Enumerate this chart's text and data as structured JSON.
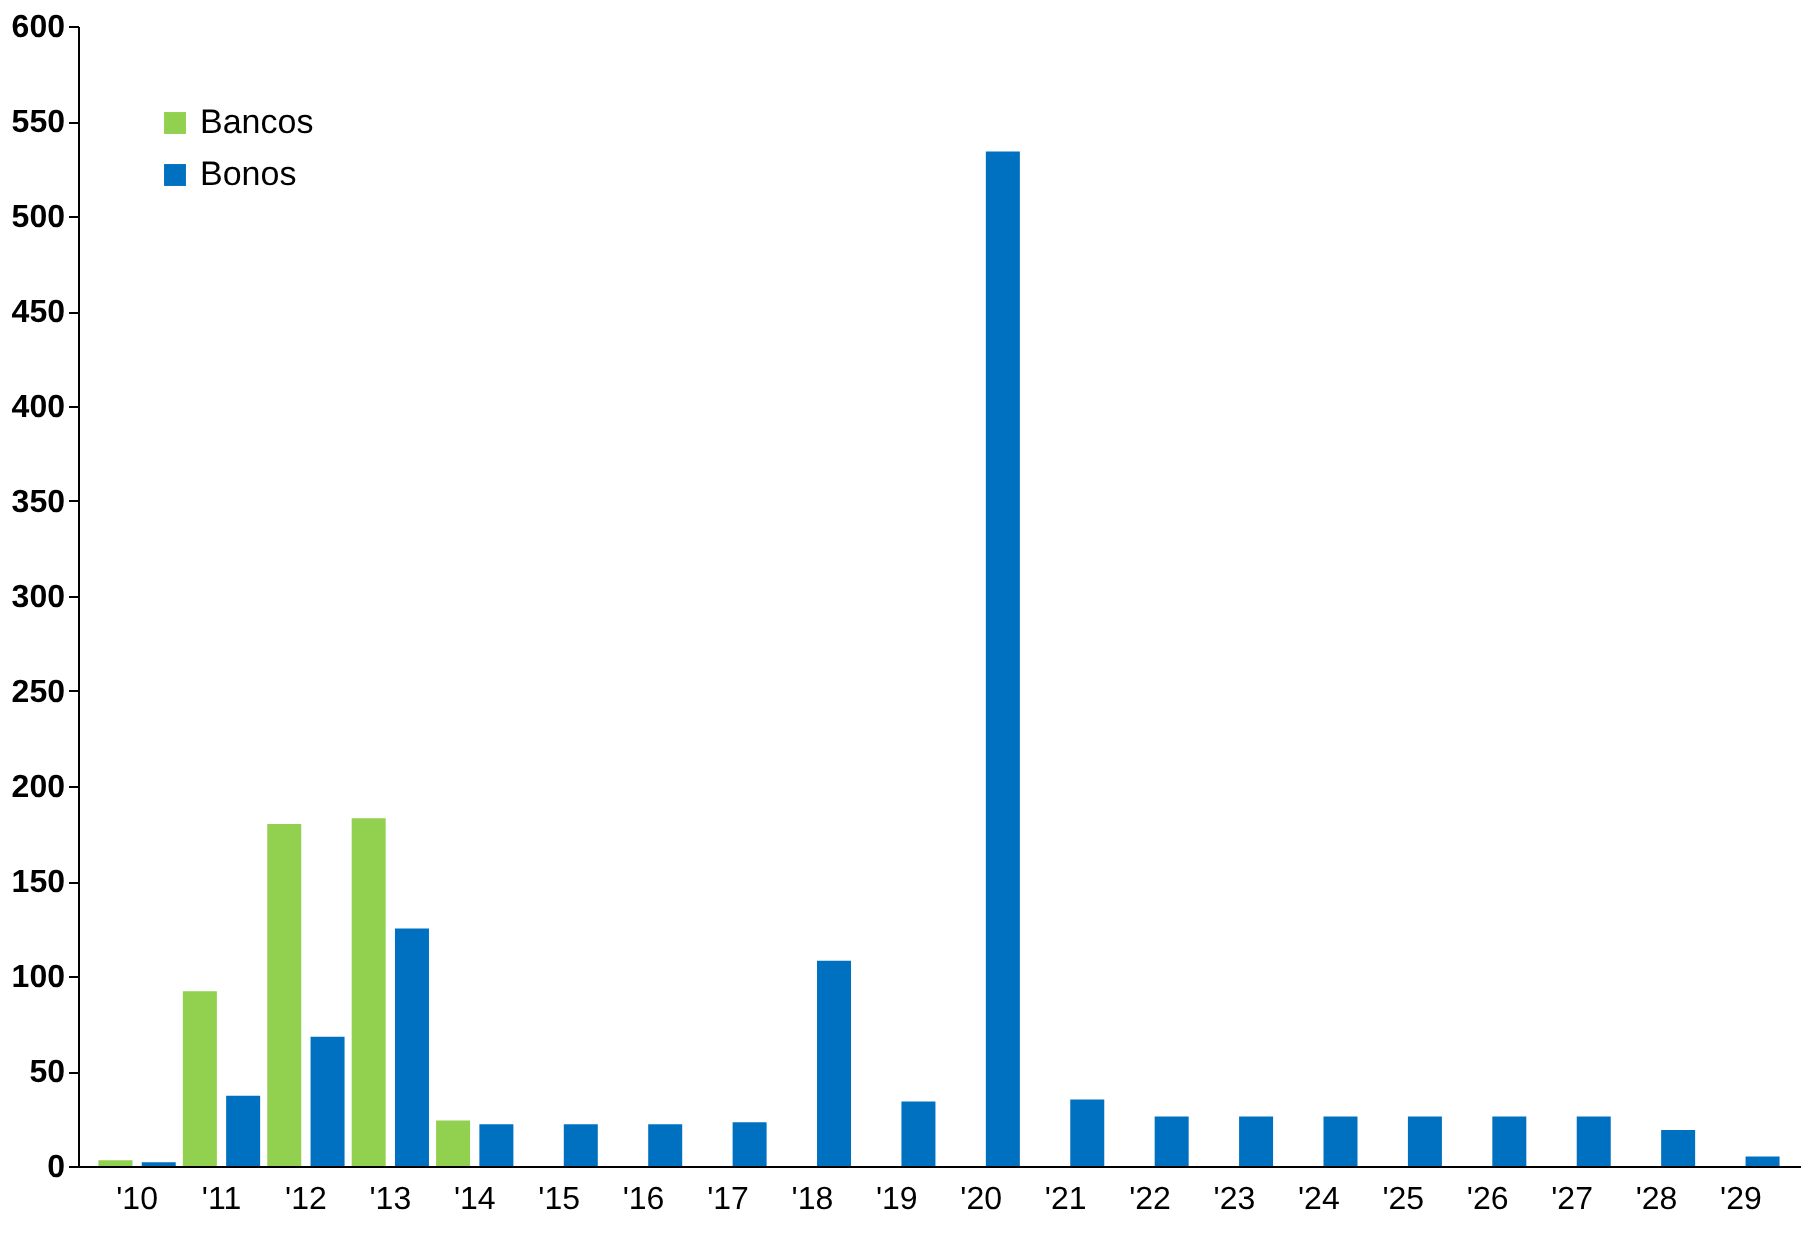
{
  "chart_data": {
    "type": "bar",
    "categories": [
      "'10",
      "'11",
      "'12",
      "'13",
      "'14",
      "'15",
      "'16",
      "'17",
      "'18",
      "'19",
      "'20",
      "'21",
      "'22",
      "'23",
      "'24",
      "'25",
      "'26",
      "'27",
      "'28",
      "'29"
    ],
    "series": [
      {
        "name": "Bancos",
        "color": "#92d050",
        "values": [
          3,
          92,
          180,
          183,
          24,
          null,
          null,
          null,
          null,
          null,
          null,
          null,
          null,
          null,
          null,
          null,
          null,
          null,
          null,
          null
        ]
      },
      {
        "name": "Bonos",
        "color": "#0070c0",
        "values": [
          2,
          37,
          68,
          125,
          22,
          22,
          22,
          23,
          108,
          34,
          534,
          35,
          26,
          26,
          26,
          26,
          26,
          26,
          19,
          5
        ]
      }
    ],
    "ylim": [
      0,
      600
    ],
    "yticks": [
      0,
      50,
      100,
      150,
      200,
      250,
      300,
      350,
      400,
      450,
      500,
      550,
      600
    ],
    "grid": false,
    "legend": "top left"
  }
}
